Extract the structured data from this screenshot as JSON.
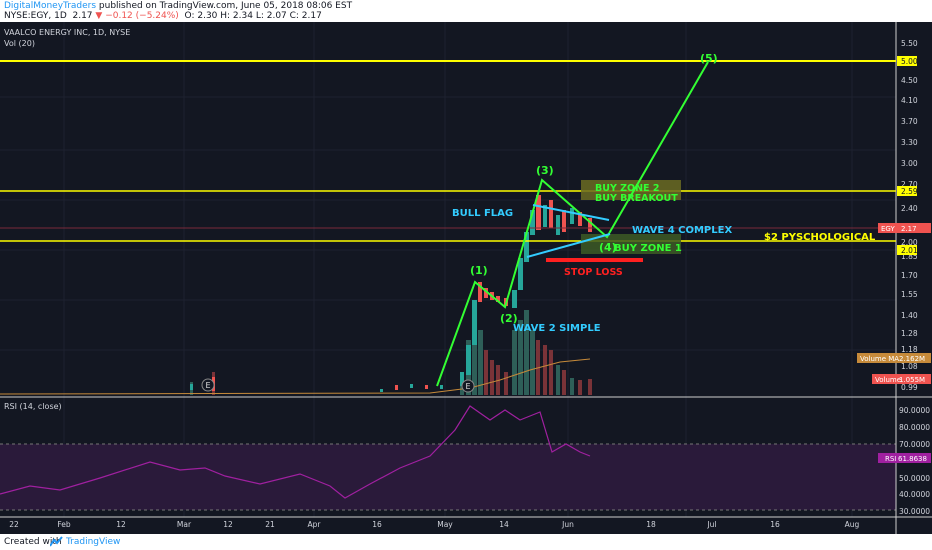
{
  "header": {
    "author": "DigitalMoneyTraders",
    "published": " published on TradingView.com, June 05, 2018 08:06 EST",
    "symbol": "NYSE:EGY, 1D",
    "price": "2.17",
    "change": "−0.12 (−5.24%)",
    "ohlc": "O: 2.30 H: 2.34 L: 2.07 C: 2.17"
  },
  "chart": {
    "title": "VAALCO ENERGY INC, 1D, NYSE",
    "vol_label": "Vol (20)",
    "rsi_label": "RSI (14, close)",
    "price_axis": [
      "5.50",
      "5.00",
      "4.50",
      "4.10",
      "3.70",
      "3.30",
      "3.00",
      "2.70",
      "2.40",
      "2.20",
      "2.00",
      "1.85",
      "1.70",
      "1.55",
      "1.40",
      "1.28",
      "1.18",
      "1.08",
      "0.99"
    ],
    "rsi_axis": [
      "90.0000",
      "80.0000",
      "70.0000",
      "60.0000",
      "50.0000",
      "40.0000",
      "30.0000"
    ],
    "date_axis": [
      "22",
      "Feb",
      "12",
      "Mar",
      "12",
      "21",
      "Apr",
      "16",
      "May",
      "14",
      "Jun",
      "18",
      "Jul",
      "16",
      "Aug"
    ],
    "badges": {
      "level_500": "5.00",
      "level_259": "2.59",
      "level_201": "2.01",
      "egy": "EGY",
      "egy_price": "2.17",
      "vol_ma": "Volume MA",
      "vol_ma_val": "2.162M",
      "volume": "Volume",
      "volume_val": "1.055M",
      "rsi": "RSI",
      "rsi_val": "61.8638"
    },
    "annotations": {
      "wave1": "(1)",
      "wave2": "(2)",
      "wave3": "(3)",
      "wave4": "(4)",
      "wave5": "(5)",
      "bull_flag": "BULL FLAG",
      "buy_zone2": "BUY ZONE 2",
      "buy_breakout": "BUY BREAKOUT",
      "wave4_complex": "WAVE 4 COMPLEX",
      "buy_zone1": "BUY ZONE 1",
      "psych": "$2 PYSCHOLOGICAL",
      "stop_loss": "STOP LOSS",
      "wave2_simple": "WAVE 2 SIMPLE",
      "e_marker": "E"
    },
    "colors": {
      "background": "#131722",
      "up": "#26a69a",
      "down": "#ef5350",
      "level": "#ffff00",
      "wave": "#33ff33",
      "cyan": "#33ccff",
      "rsi": "#a020a0",
      "rsi_band": "#2a1a3a"
    }
  },
  "footer": {
    "created": "Created with",
    "brand": "TradingView",
    "logo_icon": "tradingview-logo-icon"
  }
}
